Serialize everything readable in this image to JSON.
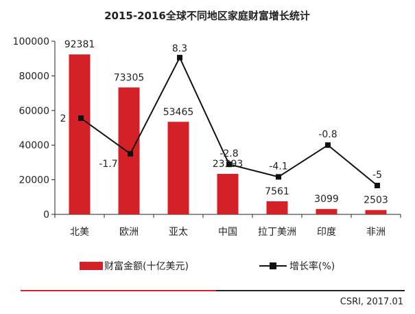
{
  "chart_data": {
    "type": "bar+line",
    "title": "2015-2016全球不同地区家庭财富增长统计",
    "categories": [
      "北美",
      "欧洲",
      "亚太",
      "中国",
      "拉丁美洲",
      "印度",
      "非洲"
    ],
    "series": [
      {
        "name": "财富金额(十亿美元)",
        "type": "bar",
        "axis": "left",
        "values": [
          92381,
          73305,
          53465,
          23393,
          7561,
          3099,
          2503
        ],
        "labels": [
          "92381",
          "73305",
          "53465",
          "23393",
          "7561",
          "3099",
          "2503"
        ],
        "color": "#d42027"
      },
      {
        "name": "增长率(%)",
        "type": "line",
        "axis": "right",
        "values": [
          2,
          -1.7,
          8.3,
          -2.8,
          -4.1,
          -0.8,
          -5
        ],
        "labels": [
          "2",
          "-1.7",
          "8.3",
          "-2.8",
          "-4.1",
          "-0.8",
          "-5"
        ],
        "color": "#111111"
      }
    ],
    "yaxis_left": {
      "ylim": [
        0,
        100000
      ],
      "ticks": [
        "0",
        "20000",
        "40000",
        "60000",
        "80000",
        "100000"
      ]
    },
    "yaxis_right": {
      "ylim": [
        -8,
        10
      ],
      "shown": false
    },
    "legend": "bottom"
  },
  "source": "CSRI, 2017.01",
  "colors": {
    "accent": "#d42027",
    "footer_dark": "#222222"
  }
}
